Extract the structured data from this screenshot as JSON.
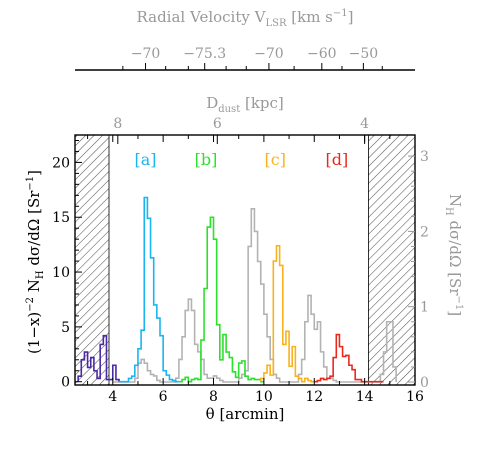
{
  "chart_data": {
    "type": "histogram",
    "top_axis": {
      "label_main": "Radial Velocity V",
      "label_sub": "LSR",
      "label_unit": " [km s",
      "label_sup": "−1",
      "label_close": "]",
      "ticks": [
        {
          "label": "−70",
          "theta": 5.3
        },
        {
          "label": "−75.3",
          "theta": 7.65
        },
        {
          "label": "−70",
          "theta": 10.2
        },
        {
          "label": "−60",
          "theta": 12.3
        },
        {
          "label": "−50",
          "theta": 13.95
        }
      ]
    },
    "dust_axis": {
      "label_main": "D",
      "label_sub": "dust",
      "label_unit": " [kpc]",
      "ticks": [
        {
          "label": "8",
          "theta": 4.2
        },
        {
          "label": "6",
          "theta": 8.15
        },
        {
          "label": "4",
          "theta": 14.0
        }
      ]
    },
    "x_axis": {
      "label": "θ [arcmin]",
      "range": [
        2.5,
        16
      ],
      "ticks": [
        "4",
        "6",
        "8",
        "10",
        "12",
        "14",
        "16"
      ]
    },
    "y_left": {
      "label_pre": "(1−x)",
      "label_sup": "−2",
      "label_mid": " N",
      "label_sub": "H",
      "label_post": " dσ/dΩ [Sr",
      "label_sup2": "−1",
      "label_close": "]",
      "range": [
        -0.3,
        22.5
      ],
      "ticks": [
        "0",
        "5",
        "10",
        "15",
        "20"
      ]
    },
    "y_right": {
      "label_pre": "N",
      "label_sub": "H",
      "label_post": " dσ/dΩ [Sr",
      "label_sup": "−1",
      "label_close": "]",
      "range": [
        -0.04,
        3.28
      ],
      "ticks": [
        "0",
        "1",
        "2",
        "3"
      ]
    },
    "shaded_regions": [
      [
        2.5,
        3.85
      ],
      [
        14.15,
        16.0
      ]
    ],
    "bin_width": 0.125,
    "peaks": [
      {
        "label": "[a]",
        "theta": 5.3,
        "color": "#19b5f0"
      },
      {
        "label": "[b]",
        "theta": 7.7,
        "color": "#2ee02e"
      },
      {
        "label": "[c]",
        "theta": 10.45,
        "color": "#f7b21e"
      },
      {
        "label": "[d]",
        "theta": 12.9,
        "color": "#e82a1e"
      }
    ],
    "series": [
      {
        "style": "colored",
        "segments": [
          {
            "color": "#4b2aa8",
            "start": 2.625,
            "values": [
              0.5,
              2.0,
              2.7,
              1.3,
              2.2,
              1.0,
              0.3,
              3.4,
              4.2,
              0.2,
              0.2,
              1.5,
              0.2
            ]
          },
          {
            "color": "#19b5f0",
            "start": 4.25,
            "values": [
              0,
              0,
              0,
              0.3,
              0.5,
              1.5,
              3.0,
              4.7,
              16.8,
              14.9,
              11.3,
              7.0,
              5.8,
              4.2,
              1.0,
              0.6,
              0.2,
              0.1,
              0
            ]
          },
          {
            "color": "#2ee02e",
            "start": 6.625,
            "values": [
              0,
              0.2,
              0.4,
              0,
              0.2,
              0.3,
              0.2,
              3.8,
              8.5,
              14.1,
              15.0,
              13.0,
              5.2,
              2.0,
              4.3,
              2.7,
              2.2,
              0.9,
              0.4,
              1.7,
              1.9,
              0.5,
              0.2,
              0.3,
              0.2,
              0.2,
              0
            ]
          },
          {
            "color": "#f7b21e",
            "start": 9.875,
            "values": [
              0.3,
              0.8,
              1.5,
              0.6,
              11.0,
              12.4,
              10.6,
              3.4,
              4.6,
              1.4,
              3.2,
              0.5,
              0.3,
              0,
              0.3,
              0.1,
              0
            ]
          },
          {
            "color": "#e82a1e",
            "start": 12.0,
            "values": [
              0,
              0.1,
              0.3,
              0.2,
              0.3,
              0.5,
              2.2,
              4.3,
              3.2,
              2.3,
              2.4,
              1.5,
              1.1,
              0.2,
              0.2,
              0,
              0,
              0,
              0,
              0,
              0,
              0
            ]
          }
        ]
      },
      {
        "style": "gray",
        "color": "#b3b3b3",
        "start": 4.0,
        "values": [
          0,
          0,
          0,
          0,
          0,
          0,
          0,
          0.05,
          0.25,
          0.3,
          0.25,
          0.15,
          0.1,
          0.08,
          0.02,
          0,
          0,
          0,
          0,
          0,
          0.05,
          0.3,
          0.6,
          0.95,
          1.1,
          0.95,
          0.5,
          0.4,
          0.3,
          0.1,
          0.05,
          0.05,
          0.08,
          0.05,
          0.02,
          0,
          0,
          0,
          0,
          0,
          0.05,
          0.1,
          0.15,
          1.8,
          2.3,
          2.0,
          1.6,
          1.3,
          0.9,
          0.6,
          0.3,
          0.1,
          0.05,
          0,
          0,
          0,
          0,
          0,
          0,
          0.1,
          0.3,
          0.8,
          1.15,
          0.9,
          0.7,
          0.8,
          0.4,
          0.2,
          0.05,
          0.05,
          0.02,
          0,
          0,
          0,
          0,
          0,
          0,
          0,
          0,
          0,
          0,
          0,
          0,
          0,
          0,
          0.1,
          0.4,
          0.8,
          0.8,
          0.2
        ]
      }
    ]
  }
}
